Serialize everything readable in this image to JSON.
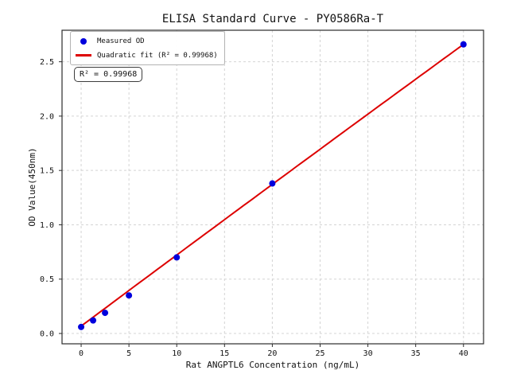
{
  "figure": {
    "background": "#ffffff"
  },
  "chart_data": {
    "type": "scatter",
    "title": "ELISA Standard Curve - PY0586Ra-T",
    "xlabel": "Rat ANGPTL6 Concentration (ng/mL)",
    "ylabel": "OD Value(450nm)",
    "xlim": [
      -2,
      42.1
    ],
    "ylim": [
      -0.095,
      2.79
    ],
    "xticks": [
      0,
      5,
      10,
      15,
      20,
      25,
      30,
      35,
      40
    ],
    "xtick_labels": [
      "0",
      "5",
      "10",
      "15",
      "20",
      "25",
      "30",
      "35",
      "40"
    ],
    "yticks": [
      0.0,
      0.5,
      1.0,
      1.5,
      2.0,
      2.5
    ],
    "ytick_labels": [
      "0.0",
      "0.5",
      "1.0",
      "1.5",
      "2.0",
      "2.5"
    ],
    "grid": true,
    "series": [
      {
        "name": "Measured OD",
        "type": "scatter",
        "color": "#0000dd",
        "x": [
          0,
          1.25,
          2.5,
          5,
          10,
          20,
          40
        ],
        "y": [
          0.06,
          0.12,
          0.19,
          0.35,
          0.7,
          1.38,
          2.66
        ]
      },
      {
        "name": "Quadratic fit (R² = 0.99968)",
        "type": "line",
        "color": "#dd0000",
        "fit": {
          "kind": "quadratic",
          "a0": 0.068,
          "a1": 0.0656,
          "a2": -2e-05,
          "x_range": [
            0,
            40
          ],
          "r_squared": 0.99968
        }
      }
    ],
    "legend": {
      "position": "upper-left",
      "items": [
        {
          "label": "Measured OD",
          "marker": "dot",
          "color": "#0000dd"
        },
        {
          "label": "Quadratic fit (R² = 0.99968)",
          "marker": "line",
          "color": "#dd0000"
        }
      ]
    },
    "annotation": "R² = 0.99968"
  }
}
